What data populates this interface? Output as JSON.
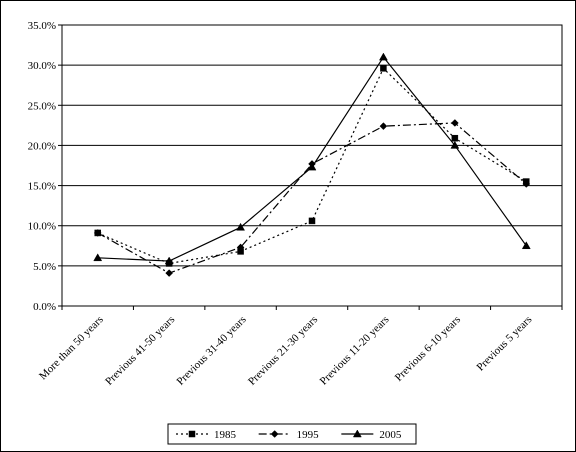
{
  "chart_data": {
    "type": "line",
    "title": "",
    "xlabel": "",
    "ylabel": "",
    "ylim": [
      0,
      35
    ],
    "ytick_labels": [
      "0.0%",
      "5.0%",
      "10.0%",
      "15.0%",
      "20.0%",
      "25.0%",
      "30.0%",
      "35.0%"
    ],
    "grid": true,
    "legend_position": "bottom",
    "categories": [
      "More than 50 years",
      "Previous 41-50 years",
      "Previous 31-40 years",
      "Previous 21-30 years",
      "Previous 11-20 years",
      "Previous 6-10 years",
      "Previous 5 years"
    ],
    "series": [
      {
        "name": "1985",
        "values": [
          9.1,
          5.3,
          6.8,
          10.6,
          29.6,
          20.9,
          15.5
        ],
        "marker": "square",
        "dash": "dot"
      },
      {
        "name": "1995",
        "values": [
          9.1,
          4.1,
          7.3,
          17.7,
          22.4,
          22.8,
          15.2
        ],
        "marker": "diamond",
        "dash": "dashdot"
      },
      {
        "name": "2005",
        "values": [
          6.0,
          5.6,
          9.8,
          17.3,
          31.0,
          20.0,
          7.5
        ],
        "marker": "triangle",
        "dash": "solid"
      }
    ]
  }
}
